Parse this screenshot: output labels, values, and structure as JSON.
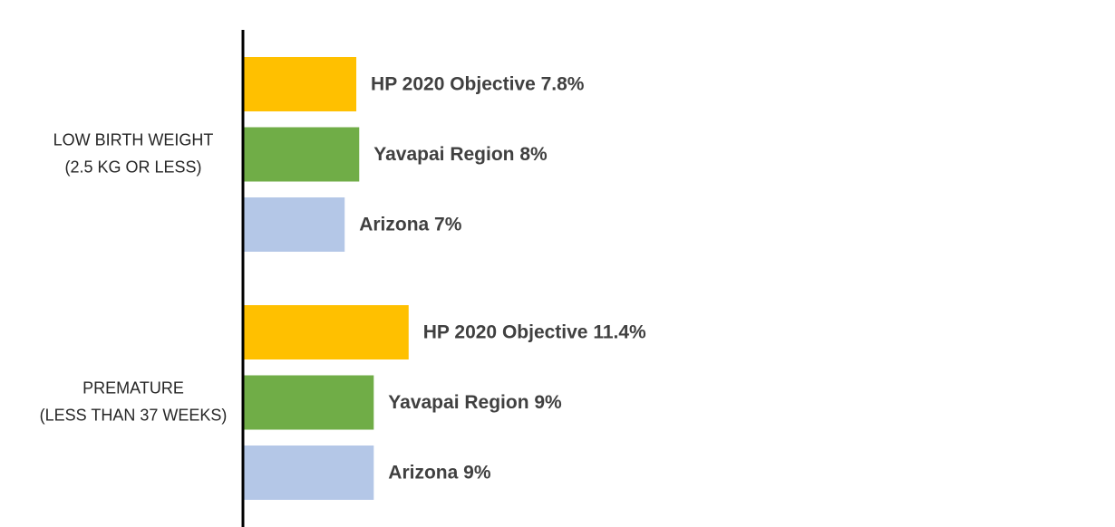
{
  "chart_data": {
    "type": "barh",
    "categories": [
      [
        "LOW BIRTH WEIGHT",
        "(2.5 KG OR LESS)"
      ],
      [
        "PREMATURE",
        "(LESS THAN 37 WEEKS)"
      ]
    ],
    "series": [
      {
        "color": "#ffc000",
        "values": [
          7.8,
          11.4
        ],
        "value_labels": [
          "HP 2020 Objective 7.8%",
          "HP 2020 Objective 11.4%"
        ]
      },
      {
        "color": "#70ad47",
        "values": [
          8,
          9
        ],
        "value_labels": [
          "Yavapai Region 8%",
          "Yavapai Region 9%"
        ]
      },
      {
        "color": "#b4c7e7",
        "values": [
          7,
          9
        ],
        "value_labels": [
          "Arizona  7%",
          "Arizona  9%"
        ]
      }
    ],
    "xlim": [
      0,
      60
    ]
  }
}
